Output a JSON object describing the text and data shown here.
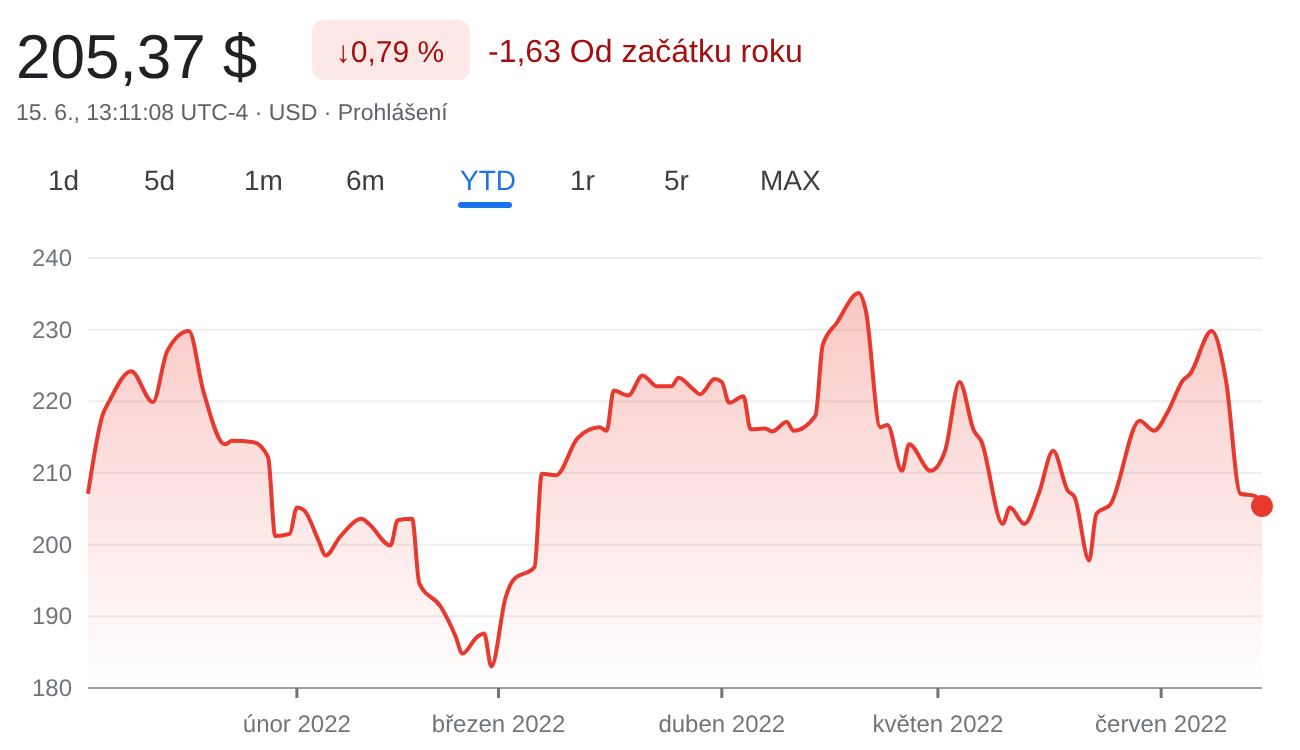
{
  "chart_data": {
    "type": "area",
    "title": "205,37 $",
    "subtitle": "15. 6., 13:11:08 UTC-4 · USD · Prohlášení",
    "annotations": [
      "↓0,79 %",
      "-1,63 Od začátku roku",
      "1d",
      "5d",
      "1m",
      "6m",
      "YTD",
      "1r",
      "5r",
      "MAX"
    ],
    "xlim": [
      "2022-01-03",
      "2022-06-15"
    ],
    "xticks": [
      {
        "value": "2022-02-01",
        "label": "únor 2022"
      },
      {
        "value": "2022-03-01",
        "label": "březen 2022"
      },
      {
        "value": "2022-04-01",
        "label": "duben 2022"
      },
      {
        "value": "2022-05-01",
        "label": "květen 2022"
      },
      {
        "value": "2022-06-01",
        "label": "červen 2022"
      }
    ],
    "ylim": [
      180,
      240
    ],
    "yticks": [
      180,
      190,
      200,
      210,
      220,
      230,
      240
    ],
    "grid": "y",
    "marker": "none",
    "line_style": "solid",
    "series": [
      {
        "color": "#e8392f",
        "x": [
          "2022-01-03",
          "2022-01-05",
          "2022-01-06",
          "2022-01-09",
          "2022-01-12",
          "2022-01-14",
          "2022-01-17",
          "2022-01-19",
          "2022-01-22",
          "2022-01-23",
          "2022-01-26",
          "2022-01-28",
          "2022-01-29",
          "2022-01-31",
          "2022-02-01",
          "2022-02-02",
          "2022-02-04",
          "2022-02-05",
          "2022-02-07",
          "2022-02-10",
          "2022-02-11",
          "2022-02-14",
          "2022-02-15",
          "2022-02-17",
          "2022-02-18",
          "2022-02-21",
          "2022-02-23",
          "2022-02-24",
          "2022-02-26",
          "2022-02-27",
          "2022-02-28",
          "2022-03-02",
          "2022-03-03",
          "2022-03-06",
          "2022-03-07",
          "2022-03-09",
          "2022-03-12",
          "2022-03-15",
          "2022-03-16",
          "2022-03-17",
          "2022-03-19",
          "2022-03-21",
          "2022-03-23",
          "2022-03-25",
          "2022-03-26",
          "2022-03-28",
          "2022-03-29",
          "2022-03-31",
          "2022-04-01",
          "2022-04-02",
          "2022-04-04",
          "2022-04-05",
          "2022-04-07",
          "2022-04-08",
          "2022-04-10",
          "2022-04-11",
          "2022-04-14",
          "2022-04-15",
          "2022-04-17",
          "2022-04-20",
          "2022-04-21",
          "2022-04-23",
          "2022-04-24",
          "2022-04-26",
          "2022-04-27",
          "2022-04-30",
          "2022-05-02",
          "2022-05-04",
          "2022-05-06",
          "2022-05-07",
          "2022-05-10",
          "2022-05-11",
          "2022-05-13",
          "2022-05-15",
          "2022-05-17",
          "2022-05-19",
          "2022-05-20",
          "2022-05-22",
          "2022-05-23",
          "2022-05-25",
          "2022-05-29",
          "2022-05-31",
          "2022-06-02",
          "2022-06-04",
          "2022-06-05",
          "2022-06-08",
          "2022-06-10",
          "2022-06-12",
          "2022-06-14",
          "2022-06-15"
        ],
        "values": [
          207.1,
          218.0,
          220.1,
          224.2,
          219.9,
          227.0,
          229.8,
          221.5,
          214.0,
          214.5,
          214.3,
          212.2,
          201.2,
          201.5,
          205.2,
          204.8,
          200.6,
          198.5,
          201.1,
          203.6,
          202.9,
          199.9,
          203.4,
          203.6,
          194.6,
          191.3,
          187.3,
          184.8,
          187.1,
          187.6,
          183.0,
          192.7,
          195.0,
          196.9,
          209.9,
          209.7,
          214.9,
          216.4,
          215.9,
          221.5,
          220.8,
          223.6,
          222.1,
          222.1,
          223.3,
          221.7,
          221.0,
          223.1,
          222.7,
          219.8,
          220.7,
          216.1,
          216.2,
          215.8,
          217.1,
          215.9,
          218.0,
          227.8,
          231.0,
          235.1,
          232.6,
          216.4,
          216.7,
          210.3,
          214.0,
          210.3,
          213.1,
          222.7,
          215.9,
          214.5,
          202.9,
          205.2,
          202.9,
          207.1,
          213.1,
          207.6,
          206.6,
          197.8,
          204.3,
          205.7,
          217.3,
          215.9,
          218.7,
          222.9,
          223.8,
          229.8,
          222.9,
          207.1,
          206.8,
          205.4
        ]
      },
      {
        "type": "scatter",
        "color": "#e8392f",
        "marker": "circle",
        "x": [
          "2022-06-15"
        ],
        "values": [
          205.4
        ]
      }
    ]
  }
}
